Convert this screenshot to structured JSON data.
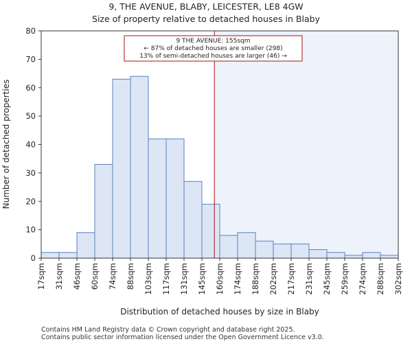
{
  "chart_data": {
    "type": "bar",
    "title": "9, THE AVENUE, BLABY, LEICESTER, LE8 4GW",
    "subtitle": "Size of property relative to detached houses in Blaby",
    "xlabel": "Distribution of detached houses by size in Blaby",
    "ylabel": "Number of detached properties",
    "ylim": [
      0,
      80
    ],
    "yticks": [
      "0",
      "10",
      "20",
      "30",
      "40",
      "50",
      "60",
      "70",
      "80"
    ],
    "bin_edges_label": [
      "17sqm",
      "31sqm",
      "46sqm",
      "60sqm",
      "74sqm",
      "88sqm",
      "103sqm",
      "117sqm",
      "131sqm",
      "145sqm",
      "160sqm",
      "174sqm",
      "188sqm",
      "202sqm",
      "217sqm",
      "231sqm",
      "245sqm",
      "259sqm",
      "274sqm",
      "288sqm",
      "302sqm"
    ],
    "values": [
      2,
      2,
      9,
      33,
      63,
      64,
      42,
      42,
      27,
      19,
      8,
      9,
      6,
      5,
      5,
      3,
      2,
      1,
      2,
      1
    ],
    "marker_bin_position": 9.7,
    "highlight_from_bin": 9.7,
    "grid": false,
    "colors": {
      "bar_fill": "#dce6f5",
      "bar_stroke": "#5b7fc0",
      "marker": "#aa1111",
      "highlight_fill": "#eef3fb"
    },
    "annotation": {
      "line1": "9 THE AVENUE: 155sqm",
      "line2": "← 87% of detached houses are smaller (298)",
      "line3": "13% of semi-detached houses are larger (46) →"
    }
  },
  "footer": {
    "line1": "Contains HM Land Registry data © Crown copyright and database right 2025.",
    "line2": "Contains public sector information licensed under the Open Government Licence v3.0."
  }
}
